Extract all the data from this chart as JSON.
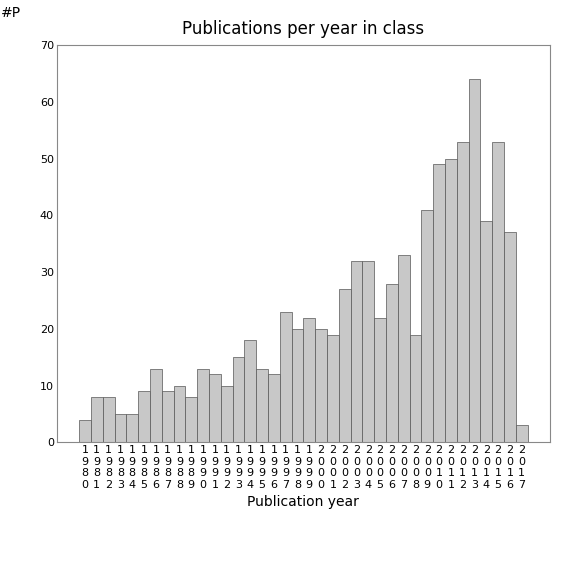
{
  "title": "Publications per year in class",
  "xlabel": "Publication year",
  "ylabel": "#P",
  "years": [
    1980,
    1981,
    1982,
    1983,
    1984,
    1985,
    1986,
    1987,
    1988,
    1989,
    1990,
    1991,
    1992,
    1993,
    1994,
    1995,
    1996,
    1997,
    1998,
    1999,
    2000,
    2001,
    2002,
    2003,
    2004,
    2005,
    2006,
    2007,
    2008,
    2009,
    2010,
    2011,
    2012,
    2013,
    2014,
    2015,
    2016,
    2017
  ],
  "values": [
    4,
    8,
    8,
    5,
    5,
    9,
    13,
    9,
    10,
    8,
    13,
    12,
    10,
    15,
    18,
    13,
    12,
    23,
    20,
    22,
    20,
    19,
    27,
    32,
    32,
    22,
    28,
    33,
    19,
    41,
    49,
    50,
    53,
    64,
    39,
    53,
    37,
    3
  ],
  "bar_color": "#c8c8c8",
  "bar_edge_color": "#555555",
  "bar_edge_width": 0.5,
  "ylim": [
    0,
    70
  ],
  "yticks": [
    0,
    10,
    20,
    30,
    40,
    50,
    60,
    70
  ],
  "bg_color": "#ffffff",
  "title_fontsize": 12,
  "label_fontsize": 10,
  "tick_fontsize": 8
}
